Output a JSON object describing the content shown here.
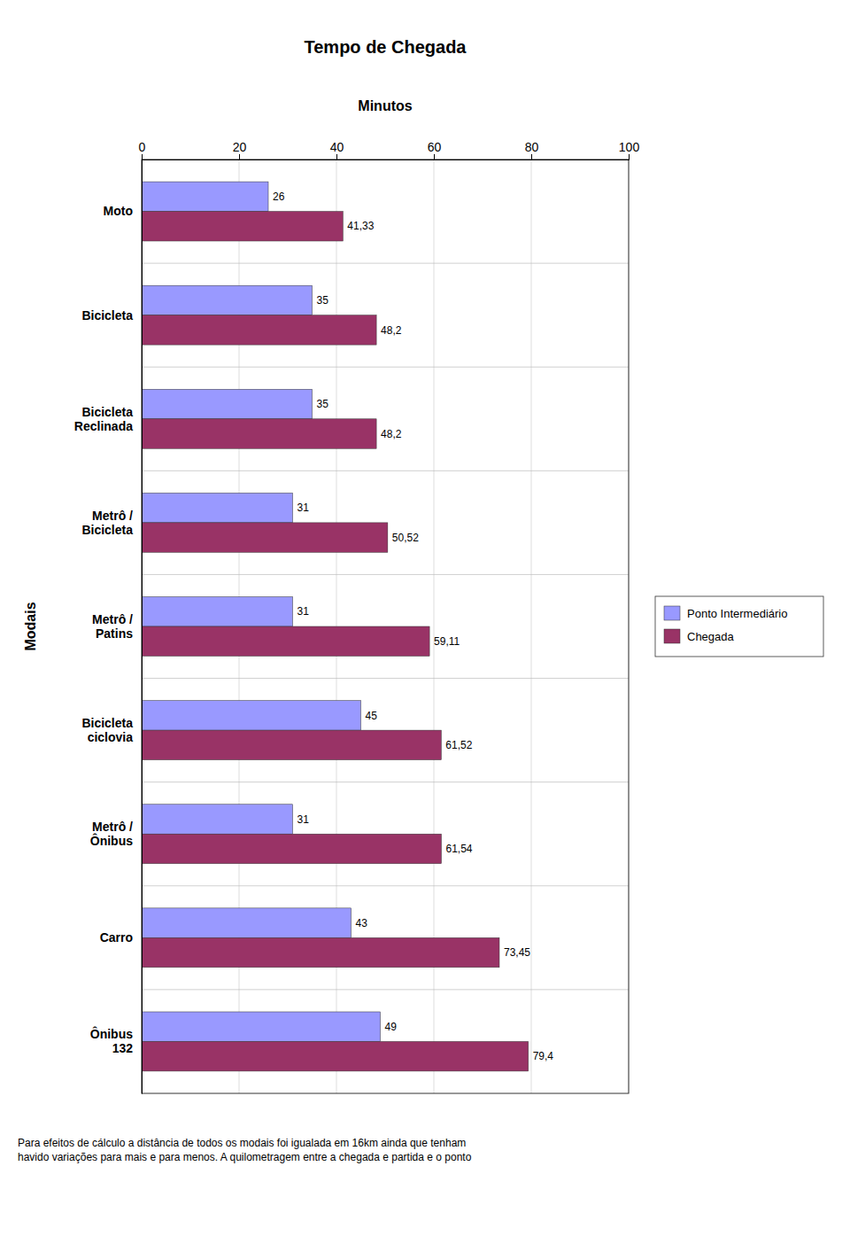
{
  "chart_data": {
    "type": "bar",
    "orientation": "horizontal",
    "title": "Tempo de Chegada",
    "xlabel": "Minutos",
    "ylabel": "Modais",
    "categories": [
      "Moto",
      "Bicicleta",
      "Bicicleta\nReclinada",
      "Metrô /\nBicicleta",
      "Metrô /\nPatins",
      "Bicicleta\nciclovia",
      "Metrô /\nÔnibus",
      "Carro",
      "Ônibus\n132"
    ],
    "series": [
      {
        "name": "Ponto Intermediário",
        "color": "#9999FF",
        "values": [
          26,
          35,
          35,
          31,
          31,
          45,
          31,
          43,
          49
        ]
      },
      {
        "name": "Chegada",
        "color": "#993366",
        "values": [
          41.33,
          48.2,
          48.2,
          50.52,
          59.11,
          61.52,
          61.54,
          73.45,
          79.4
        ],
        "value_labels": [
          "41,33",
          "48,2",
          "48,2",
          "50,52",
          "59,11",
          "61,52",
          "61,54",
          "73,45",
          "79,4"
        ]
      }
    ],
    "xlim": [
      0,
      100
    ],
    "xticks": [
      0,
      20,
      40,
      60,
      80,
      100
    ],
    "grid": true,
    "legend": "right",
    "data_labels": true,
    "annotations": [
      "Para efeitos de cálculo a distância de todos os modais foi igualada em 16km ainda que tenham\nhavido variações para mais e para menos. A quilometragem entre a chegada e partida e o ponto"
    ]
  }
}
